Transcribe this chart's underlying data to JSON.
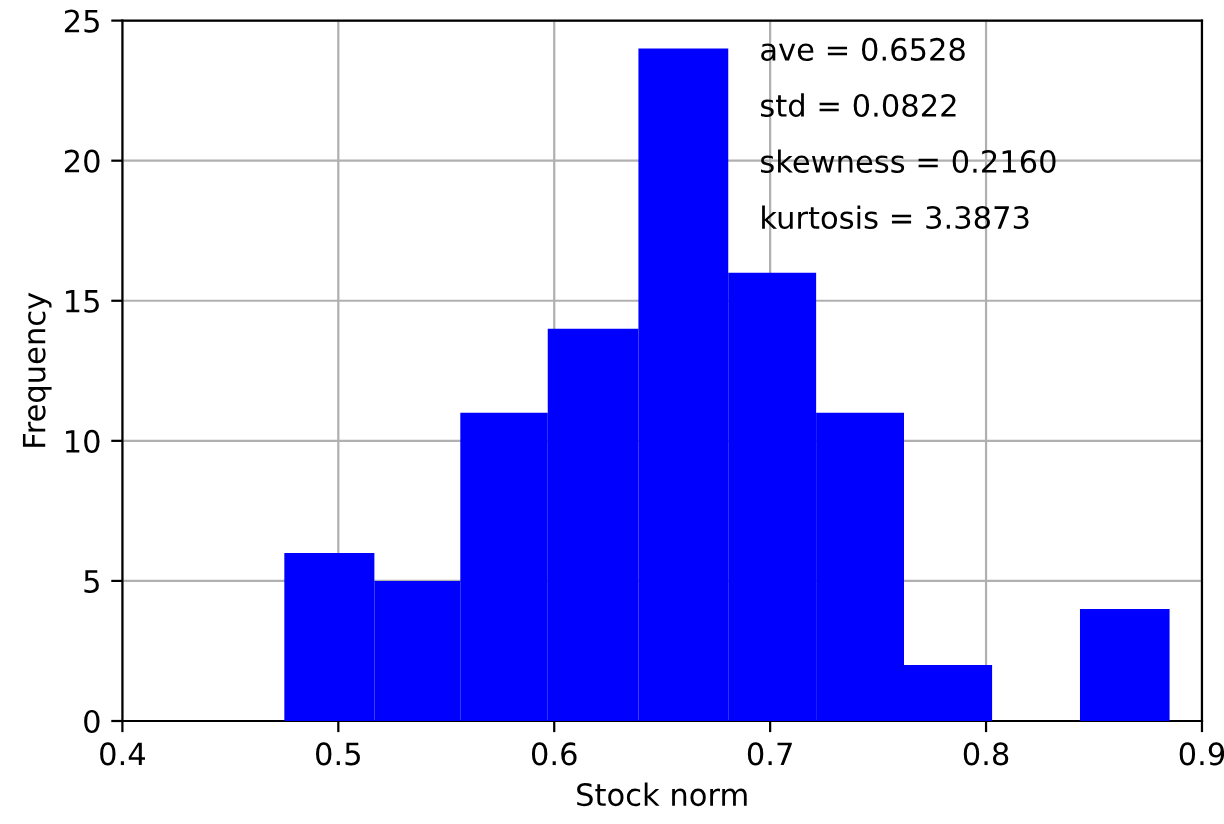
{
  "chart_data": {
    "type": "histogram",
    "xlabel": "Stock norm",
    "ylabel": "Frequency",
    "bins": [
      0.475,
      0.5167,
      0.5565,
      0.597,
      0.639,
      0.6806,
      0.7213,
      0.762,
      0.8028,
      0.8435,
      0.885
    ],
    "values": [
      6,
      5,
      11,
      14,
      24,
      16,
      11,
      2,
      0,
      4
    ],
    "color": "#0000ff",
    "xlim": [
      0.4,
      0.9
    ],
    "xticks": [
      0.4,
      0.5,
      0.6,
      0.7,
      0.8,
      0.9
    ],
    "ylim": [
      0,
      25
    ],
    "yticks": [
      0,
      5,
      10,
      15,
      20,
      25
    ],
    "grid": true,
    "annotations": [
      "ave = 0.6528",
      "std = 0.0822",
      "skewness = 0.2160",
      "kurtosis = 3.3873"
    ]
  }
}
